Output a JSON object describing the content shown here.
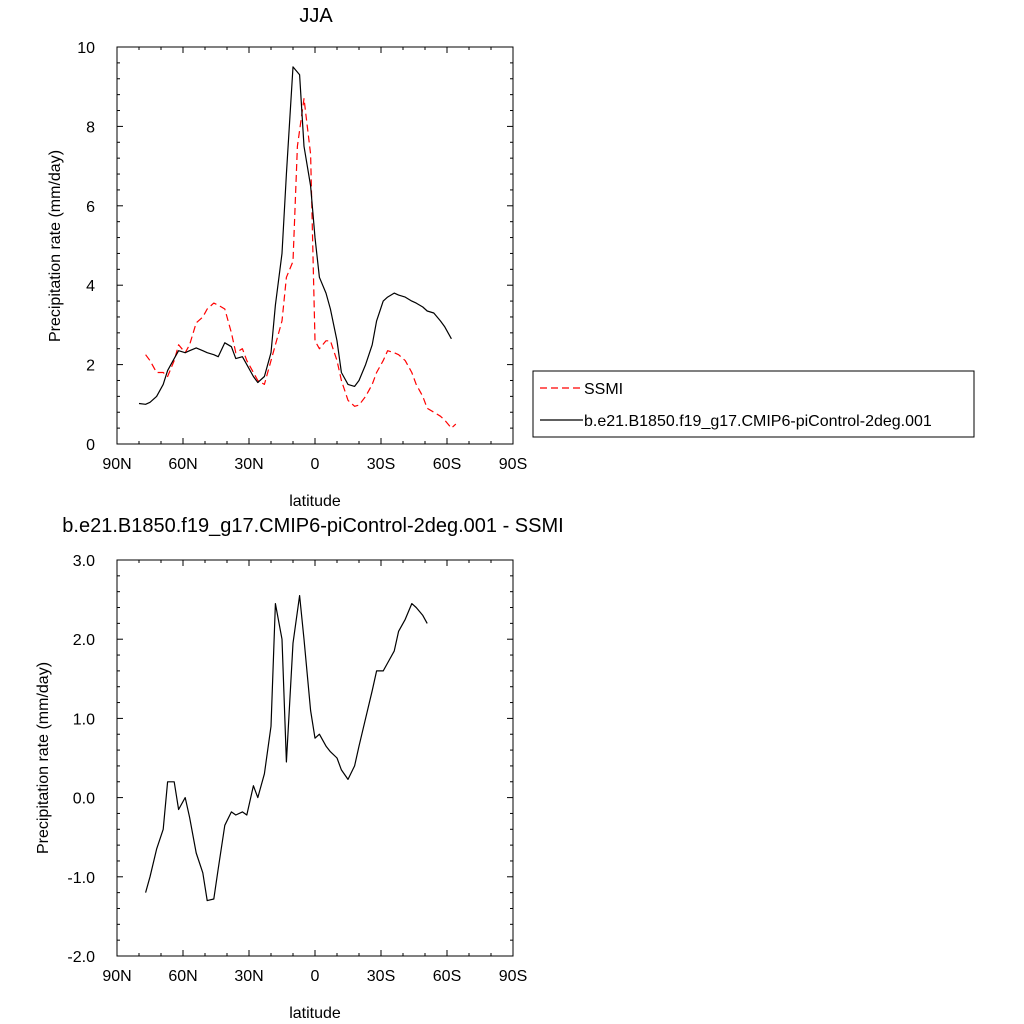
{
  "chart_data": [
    {
      "type": "line",
      "title": "JJA",
      "xlabel": "latitude",
      "ylabel": "Precipitation rate (mm/day)",
      "xlim": [
        90,
        -90
      ],
      "ylim": [
        0,
        10
      ],
      "x_ticks": [
        90,
        60,
        30,
        0,
        -30,
        -60,
        -90
      ],
      "x_tick_labels": [
        "90N",
        "60N",
        "30N",
        "0",
        "30S",
        "60S",
        "90S"
      ],
      "y_ticks": [
        0,
        2,
        4,
        6,
        8,
        10
      ],
      "y_tick_labels": [
        "0",
        "2",
        "4",
        "6",
        "8",
        "10"
      ],
      "grid": false,
      "legend_position": "outside-right",
      "series": [
        {
          "name": "SSMI",
          "color": "#ff0000",
          "dash": "dashed",
          "points": [
            [
              77,
              2.25
            ],
            [
              75,
              2.1
            ],
            [
              72,
              1.8
            ],
            [
              69,
              1.8
            ],
            [
              67,
              1.7
            ],
            [
              64,
              2.1
            ],
            [
              62,
              2.5
            ],
            [
              59,
              2.3
            ],
            [
              57,
              2.5
            ],
            [
              54,
              3.05
            ],
            [
              51,
              3.2
            ],
            [
              49,
              3.4
            ],
            [
              46,
              3.55
            ],
            [
              44,
              3.5
            ],
            [
              41,
              3.4
            ],
            [
              38,
              2.8
            ],
            [
              36,
              2.3
            ],
            [
              33,
              2.4
            ],
            [
              31,
              2.1
            ],
            [
              28,
              1.8
            ],
            [
              26,
              1.6
            ],
            [
              23,
              1.5
            ],
            [
              20,
              2.1
            ],
            [
              18,
              2.5
            ],
            [
              15,
              3.1
            ],
            [
              13,
              4.2
            ],
            [
              10,
              4.6
            ],
            [
              8,
              7.5
            ],
            [
              5,
              8.7
            ],
            [
              2,
              7.3
            ],
            [
              0,
              2.6
            ],
            [
              -2,
              2.4
            ],
            [
              -5,
              2.6
            ],
            [
              -7,
              2.6
            ],
            [
              -10,
              2.1
            ],
            [
              -12,
              1.6
            ],
            [
              -15,
              1.1
            ],
            [
              -18,
              0.95
            ],
            [
              -20,
              0.98
            ],
            [
              -23,
              1.2
            ],
            [
              -26,
              1.5
            ],
            [
              -28,
              1.8
            ],
            [
              -31,
              2.1
            ],
            [
              -33,
              2.35
            ],
            [
              -36,
              2.3
            ],
            [
              -38,
              2.25
            ],
            [
              -41,
              2.1
            ],
            [
              -44,
              1.8
            ],
            [
              -46,
              1.5
            ],
            [
              -49,
              1.2
            ],
            [
              -51,
              0.9
            ],
            [
              -54,
              0.8
            ],
            [
              -57,
              0.7
            ],
            [
              -59,
              0.6
            ],
            [
              -62,
              0.4
            ],
            [
              -64,
              0.5
            ]
          ]
        },
        {
          "name": "b.e21.B1850.f19_g17.CMIP6-piControl-2deg.001",
          "color": "#000000",
          "dash": "solid",
          "points": [
            [
              80,
              1.02
            ],
            [
              77,
              1.0
            ],
            [
              75,
              1.05
            ],
            [
              72,
              1.2
            ],
            [
              69,
              1.5
            ],
            [
              67,
              1.85
            ],
            [
              64,
              2.15
            ],
            [
              62,
              2.35
            ],
            [
              59,
              2.3
            ],
            [
              57,
              2.35
            ],
            [
              54,
              2.42
            ],
            [
              51,
              2.35
            ],
            [
              49,
              2.3
            ],
            [
              46,
              2.25
            ],
            [
              44,
              2.2
            ],
            [
              41,
              2.55
            ],
            [
              38,
              2.45
            ],
            [
              36,
              2.15
            ],
            [
              33,
              2.2
            ],
            [
              31,
              2.0
            ],
            [
              28,
              1.7
            ],
            [
              26,
              1.55
            ],
            [
              23,
              1.7
            ],
            [
              20,
              2.3
            ],
            [
              18,
              3.5
            ],
            [
              15,
              4.8
            ],
            [
              13,
              6.8
            ],
            [
              10,
              9.5
            ],
            [
              7,
              9.3
            ],
            [
              5,
              7.5
            ],
            [
              2,
              6.5
            ],
            [
              0,
              5.2
            ],
            [
              -2,
              4.2
            ],
            [
              -5,
              3.8
            ],
            [
              -7,
              3.4
            ],
            [
              -10,
              2.6
            ],
            [
              -12,
              1.8
            ],
            [
              -15,
              1.5
            ],
            [
              -18,
              1.45
            ],
            [
              -20,
              1.6
            ],
            [
              -23,
              2.0
            ],
            [
              -26,
              2.5
            ],
            [
              -28,
              3.1
            ],
            [
              -31,
              3.6
            ],
            [
              -33,
              3.7
            ],
            [
              -36,
              3.8
            ],
            [
              -38,
              3.75
            ],
            [
              -41,
              3.7
            ],
            [
              -44,
              3.6
            ],
            [
              -46,
              3.55
            ],
            [
              -49,
              3.45
            ],
            [
              -51,
              3.35
            ],
            [
              -54,
              3.3
            ],
            [
              -57,
              3.1
            ],
            [
              -59,
              2.95
            ],
            [
              -62,
              2.65
            ]
          ]
        }
      ]
    },
    {
      "type": "line",
      "title": "b.e21.B1850.f19_g17.CMIP6-piControl-2deg.001 - SSMI",
      "xlabel": "latitude",
      "ylabel": "Precipitation rate (mm/day)",
      "xlim": [
        90,
        -90
      ],
      "ylim": [
        -2,
        3
      ],
      "x_ticks": [
        90,
        60,
        30,
        0,
        -30,
        -60,
        -90
      ],
      "x_tick_labels": [
        "90N",
        "60N",
        "30N",
        "0",
        "30S",
        "60S",
        "90S"
      ],
      "y_ticks": [
        -2,
        -1,
        0,
        1,
        2,
        3
      ],
      "y_tick_labels": [
        "-2.0",
        "-1.0",
        "0.0",
        "1.0",
        "2.0",
        "3.0"
      ],
      "grid": false,
      "series": [
        {
          "color": "#000000",
          "dash": "solid",
          "points": [
            [
              77,
              -1.2
            ],
            [
              75,
              -1.0
            ],
            [
              72,
              -0.65
            ],
            [
              69,
              -0.4
            ],
            [
              67,
              0.2
            ],
            [
              64,
              0.2
            ],
            [
              62,
              -0.15
            ],
            [
              59,
              0.0
            ],
            [
              57,
              -0.25
            ],
            [
              54,
              -0.7
            ],
            [
              51,
              -0.95
            ],
            [
              49,
              -1.3
            ],
            [
              46,
              -1.28
            ],
            [
              44,
              -0.9
            ],
            [
              41,
              -0.35
            ],
            [
              38,
              -0.18
            ],
            [
              36,
              -0.22
            ],
            [
              33,
              -0.18
            ],
            [
              31,
              -0.22
            ],
            [
              28,
              0.15
            ],
            [
              26,
              0.0
            ],
            [
              23,
              0.3
            ],
            [
              20,
              0.9
            ],
            [
              18,
              2.45
            ],
            [
              15,
              2.0
            ],
            [
              13,
              0.45
            ],
            [
              10,
              1.95
            ],
            [
              7,
              2.55
            ],
            [
              5,
              2.0
            ],
            [
              2,
              1.1
            ],
            [
              0,
              0.75
            ],
            [
              -2,
              0.8
            ],
            [
              -5,
              0.65
            ],
            [
              -7,
              0.58
            ],
            [
              -10,
              0.5
            ],
            [
              -12,
              0.35
            ],
            [
              -15,
              0.23
            ],
            [
              -18,
              0.4
            ],
            [
              -20,
              0.65
            ],
            [
              -23,
              1.0
            ],
            [
              -26,
              1.35
            ],
            [
              -28,
              1.6
            ],
            [
              -31,
              1.6
            ],
            [
              -33,
              1.7
            ],
            [
              -36,
              1.85
            ],
            [
              -38,
              2.1
            ],
            [
              -41,
              2.25
            ],
            [
              -44,
              2.45
            ],
            [
              -46,
              2.4
            ],
            [
              -49,
              2.3
            ],
            [
              -51,
              2.2
            ]
          ]
        }
      ]
    }
  ]
}
